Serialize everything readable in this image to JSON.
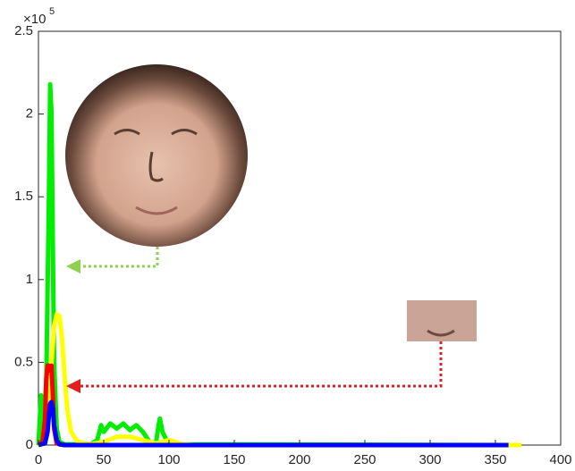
{
  "chart_data": {
    "type": "line",
    "y_multiplier_base": "×10",
    "y_multiplier_power": "5",
    "xlim": [
      0,
      400
    ],
    "xticks": [
      0,
      50,
      100,
      150,
      200,
      250,
      300,
      350,
      400
    ],
    "ylim": [
      0,
      250000
    ],
    "yticks": [
      0,
      {
        "value": 50000,
        "label": "0.5"
      },
      {
        "value": 100000,
        "label": "1"
      },
      {
        "value": 150000,
        "label": "1.5"
      },
      {
        "value": 200000,
        "label": "2"
      },
      {
        "value": 250000,
        "label": "2.5"
      }
    ],
    "grid": false,
    "series": [
      {
        "color": "#00ee00",
        "x": [
          0,
          2,
          4,
          6,
          8,
          9,
          10,
          11,
          12,
          14,
          16,
          20,
          40,
          45,
          48,
          50,
          55,
          60,
          65,
          70,
          75,
          80,
          85,
          90,
          92,
          93,
          95,
          98,
          100,
          110,
          360
        ],
        "values": [
          0,
          30000,
          10000,
          40000,
          150000,
          218000,
          200000,
          120000,
          50000,
          10000,
          2000,
          500,
          500,
          3000,
          12000,
          8000,
          13000,
          10000,
          13000,
          9000,
          12000,
          8000,
          2000,
          1000,
          12000,
          16000,
          8000,
          3000,
          1000,
          500,
          0
        ]
      },
      {
        "color": "#ffff00",
        "x": [
          0,
          5,
          8,
          10,
          12,
          14,
          16,
          18,
          20,
          22,
          25,
          30,
          40,
          50,
          60,
          70,
          80,
          90,
          100,
          105,
          110,
          120,
          370
        ],
        "values": [
          0,
          2000,
          20000,
          50000,
          72000,
          79000,
          78000,
          65000,
          42000,
          22000,
          8000,
          2000,
          500,
          2000,
          5000,
          5000,
          3000,
          1000,
          3000,
          2000,
          500,
          0,
          0
        ]
      },
      {
        "color": "#ff0000",
        "x": [
          0,
          3,
          5,
          6,
          7,
          8,
          9,
          10,
          11,
          12,
          14,
          20
        ],
        "values": [
          0,
          2000,
          15000,
          40000,
          48000,
          48000,
          45000,
          48000,
          30000,
          10000,
          1000,
          0
        ]
      },
      {
        "color": "#0000ff",
        "x": [
          0,
          5,
          7,
          8,
          9,
          10,
          11,
          12,
          14,
          16,
          20,
          360
        ],
        "values": [
          0,
          1000,
          8000,
          18000,
          25000,
          26000,
          22000,
          12000,
          3000,
          500,
          0,
          0
        ]
      }
    ]
  }
}
